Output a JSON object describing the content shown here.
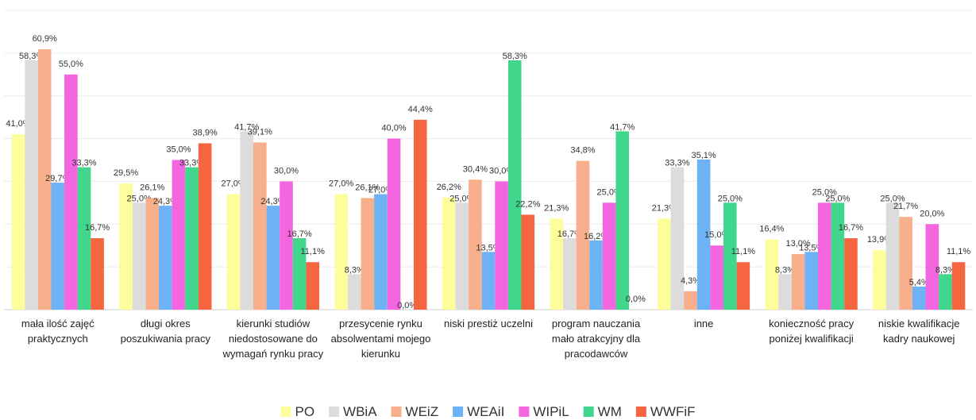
{
  "chart_data": {
    "type": "bar",
    "categories": [
      "mała ilość zajęć praktycznych",
      "długi okres poszukiwania pracy",
      "kierunki studiów niedostosowane do wymagań rynku pracy",
      "przesycenie rynku absolwentami mojego kierunku",
      "niski prestiż uczelni",
      "program nauczania mało atrakcyjny dla pracodawców",
      "inne",
      "konieczność pracy poniżej kwalifikacji",
      "niskie kwalifikacje kadry naukowej"
    ],
    "series": [
      {
        "name": "PO",
        "color": "#fdfd9c",
        "values": [
          41.0,
          29.5,
          27.0,
          27.0,
          26.2,
          21.3,
          21.3,
          16.4,
          13.9
        ],
        "value_labels": [
          "41,0%",
          "29,5%",
          "27,0%",
          "27,0%",
          "26,2%",
          "21,3%",
          "21,3%",
          "16,4%",
          "13,9%"
        ]
      },
      {
        "name": "WBiA",
        "color": "#dcdcdc",
        "values": [
          58.3,
          25.0,
          41.7,
          8.3,
          25.0,
          16.7,
          33.3,
          8.3,
          25.0
        ],
        "value_labels": [
          "58,3%",
          "25,0%",
          "41,7%",
          "8,3%",
          "25,0%",
          "16,7%",
          "33,3%",
          "8,3%",
          "25,0%"
        ]
      },
      {
        "name": "WEiZ",
        "color": "#f8b08c",
        "values": [
          60.9,
          26.1,
          39.1,
          26.1,
          30.4,
          34.8,
          4.3,
          13.0,
          21.7
        ],
        "value_labels": [
          "60,9%",
          "26,1%",
          "39,1%",
          "26,1%",
          "30,4%",
          "34,8%",
          "4,3%",
          "13,0%",
          "21,7%"
        ]
      },
      {
        "name": "WEAiI",
        "color": "#6db2f5",
        "values": [
          29.7,
          24.3,
          24.3,
          27.0,
          13.5,
          16.2,
          35.1,
          13.5,
          5.4
        ],
        "value_labels": [
          "29,7%",
          "24,3%",
          "24,3%",
          "27,0%",
          "13,5%",
          "16,2%",
          "35,1%",
          "13,5%",
          "5,4%"
        ]
      },
      {
        "name": "WIPiL",
        "color": "#f466e0",
        "values": [
          55.0,
          35.0,
          30.0,
          40.0,
          30.0,
          25.0,
          15.0,
          25.0,
          20.0
        ],
        "value_labels": [
          "55,0%",
          "35,0%",
          "30,0%",
          "40,0%",
          "30,0%",
          "25,0%",
          "15,0%",
          "25,0%",
          "20,0%"
        ]
      },
      {
        "name": "WM",
        "color": "#40d68b",
        "values": [
          33.3,
          33.3,
          16.7,
          0.0,
          58.3,
          41.7,
          25.0,
          25.0,
          8.3
        ],
        "value_labels": [
          "33,3%",
          "33,3%",
          "16,7%",
          "0,0%",
          "58,3%",
          "41,7%",
          "25,0%",
          "25,0%",
          "8,3%"
        ]
      },
      {
        "name": "WWFiF",
        "color": "#f5653f",
        "values": [
          16.7,
          38.9,
          11.1,
          44.4,
          22.2,
          0.0,
          11.1,
          16.7,
          11.1
        ],
        "value_labels": [
          "16,7%",
          "38,9%",
          "11,1%",
          "44,4%",
          "22,2%",
          "0,0%",
          "11,1%",
          "16,7%",
          "11,1%"
        ]
      }
    ],
    "ylim": [
      0,
      70
    ],
    "yticks": [
      0,
      10,
      20,
      30,
      40,
      50,
      60,
      70
    ],
    "grid": true,
    "legend": "bottom"
  }
}
